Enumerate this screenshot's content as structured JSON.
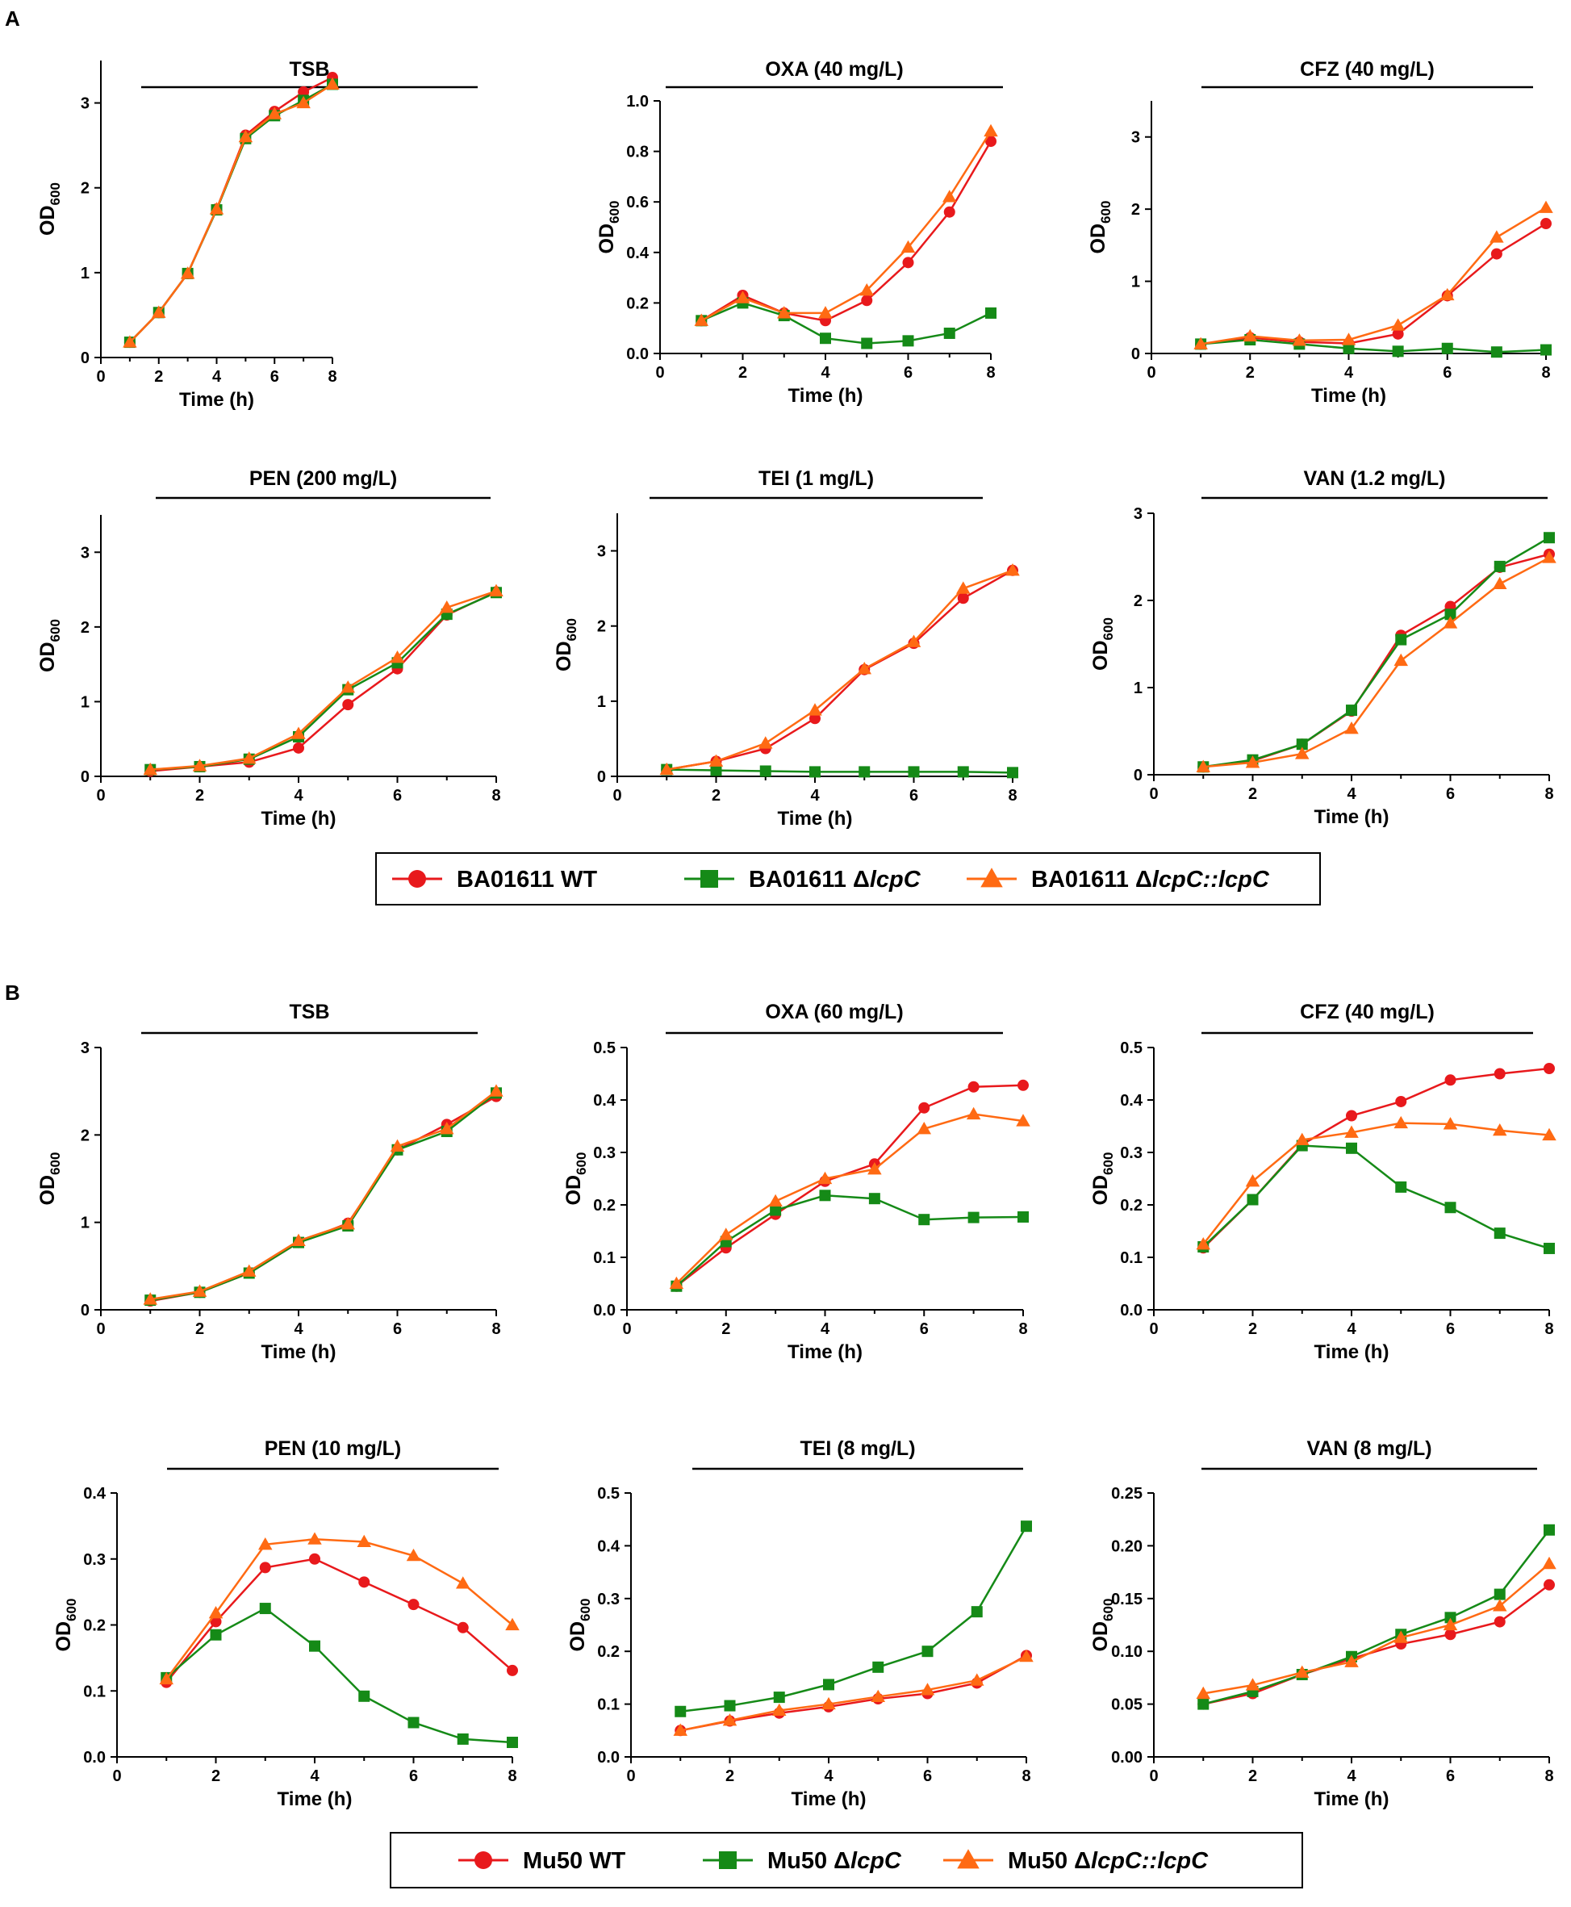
{
  "series_styles": [
    {
      "color": "#e8191c",
      "marker": "circle"
    },
    {
      "color": "#158a17",
      "marker": "square"
    },
    {
      "color": "#ff6a13",
      "marker": "triangle"
    }
  ],
  "axis_labels": {
    "xlabel": "Time (h)",
    "ylabel_main": "OD",
    "ylabel_sub": "600"
  },
  "panels": [
    {
      "letter": "A",
      "legend": [
        {
          "prefix": "BA01611 ",
          "delta": "",
          "italic": "",
          "suffix": "WT"
        },
        {
          "prefix": "BA01611 ",
          "delta": "Δ",
          "italic": "lcpC",
          "suffix": ""
        },
        {
          "prefix": "BA01611 ",
          "delta": "Δ",
          "italic": "lcpC::lcpC",
          "suffix": ""
        }
      ]
    },
    {
      "letter": "B",
      "legend": [
        {
          "prefix": "Mu50 ",
          "delta": "",
          "italic": "",
          "suffix": "WT"
        },
        {
          "prefix": "Mu50 ",
          "delta": "Δ",
          "italic": "lcpC",
          "suffix": ""
        },
        {
          "prefix": "Mu50 ",
          "delta": "Δ",
          "italic": "lcpC::lcpC",
          "suffix": ""
        }
      ]
    }
  ],
  "chart_data": [
    {
      "panel": "A",
      "type": "line",
      "title": "TSB",
      "xlabel": "Time (h)",
      "ylabel": "OD600",
      "xlim": [
        0,
        8
      ],
      "xticks": [
        "0",
        "2",
        "4",
        "6",
        "8"
      ],
      "ylim": [
        0,
        3.5
      ],
      "yticks": [
        "0",
        "1",
        "2",
        "3"
      ],
      "x": [
        1,
        2,
        3,
        4,
        5,
        6,
        7,
        8
      ],
      "series": [
        {
          "name": "BA01611 WT",
          "values": [
            0.18,
            0.53,
            0.99,
            1.75,
            2.62,
            2.9,
            3.13,
            3.3
          ]
        },
        {
          "name": "BA01611 ΔlcpC",
          "values": [
            0.18,
            0.53,
            0.99,
            1.74,
            2.58,
            2.85,
            3.03,
            3.22
          ]
        },
        {
          "name": "BA01611 ΔlcpC::lcpC",
          "values": [
            0.18,
            0.53,
            0.99,
            1.75,
            2.6,
            2.87,
            3.0,
            3.22
          ]
        }
      ]
    },
    {
      "panel": "A",
      "type": "line",
      "title": "OXA (40 mg/L)",
      "xlabel": "Time (h)",
      "ylabel": "OD600",
      "xlim": [
        0,
        8
      ],
      "xticks": [
        "0",
        "2",
        "4",
        "6",
        "8"
      ],
      "ylim": [
        0,
        1.0
      ],
      "yticks": [
        "0.0",
        "0.2",
        "0.4",
        "0.6",
        "0.8",
        "1.0"
      ],
      "x": [
        1,
        2,
        3,
        4,
        5,
        6,
        7,
        8
      ],
      "series": [
        {
          "name": "BA01611 WT",
          "values": [
            0.13,
            0.23,
            0.16,
            0.13,
            0.21,
            0.36,
            0.56,
            0.84
          ]
        },
        {
          "name": "BA01611 ΔlcpC",
          "values": [
            0.13,
            0.2,
            0.15,
            0.06,
            0.04,
            0.05,
            0.08,
            0.16
          ]
        },
        {
          "name": "BA01611 ΔlcpC::lcpC",
          "values": [
            0.13,
            0.22,
            0.16,
            0.16,
            0.25,
            0.42,
            0.62,
            0.88
          ]
        }
      ]
    },
    {
      "panel": "A",
      "type": "line",
      "title": "CFZ (40 mg/L)",
      "xlabel": "Time (h)",
      "ylabel": "OD600",
      "xlim": [
        0,
        8
      ],
      "xticks": [
        "0",
        "2",
        "4",
        "6",
        "8"
      ],
      "ylim": [
        0,
        3.5
      ],
      "yticks": [
        "0",
        "1",
        "2",
        "3"
      ],
      "x": [
        1,
        2,
        3,
        4,
        5,
        6,
        7,
        8
      ],
      "series": [
        {
          "name": "BA01611 WT",
          "values": [
            0.13,
            0.22,
            0.16,
            0.14,
            0.27,
            0.8,
            1.38,
            1.8
          ]
        },
        {
          "name": "BA01611 ΔlcpC",
          "values": [
            0.13,
            0.19,
            0.13,
            0.07,
            0.03,
            0.07,
            0.02,
            0.05
          ]
        },
        {
          "name": "BA01611 ΔlcpC::lcpC",
          "values": [
            0.13,
            0.24,
            0.18,
            0.19,
            0.39,
            0.81,
            1.61,
            2.02
          ]
        }
      ]
    },
    {
      "panel": "A",
      "type": "line",
      "title": "PEN (200 mg/L)",
      "xlabel": "Time (h)",
      "ylabel": "OD600",
      "xlim": [
        0,
        8
      ],
      "xticks": [
        "0",
        "2",
        "4",
        "6",
        "8"
      ],
      "ylim": [
        0,
        3.5
      ],
      "yticks": [
        "0",
        "1",
        "2",
        "3"
      ],
      "x": [
        1,
        2,
        3,
        4,
        5,
        6,
        7,
        8
      ],
      "series": [
        {
          "name": "BA01611 WT",
          "values": [
            0.07,
            0.13,
            0.19,
            0.38,
            0.96,
            1.44,
            2.16,
            2.47
          ]
        },
        {
          "name": "BA01611 ΔlcpC",
          "values": [
            0.09,
            0.13,
            0.23,
            0.53,
            1.16,
            1.52,
            2.17,
            2.46
          ]
        },
        {
          "name": "BA01611 ΔlcpC::lcpC",
          "values": [
            0.09,
            0.14,
            0.24,
            0.57,
            1.19,
            1.59,
            2.26,
            2.48
          ]
        }
      ]
    },
    {
      "panel": "A",
      "type": "line",
      "title": "TEI (1 mg/L)",
      "xlabel": "Time (h)",
      "ylabel": "OD600",
      "xlim": [
        0,
        8
      ],
      "xticks": [
        "0",
        "2",
        "4",
        "6",
        "8"
      ],
      "ylim": [
        0,
        3.5
      ],
      "yticks": [
        "0",
        "1",
        "2",
        "3"
      ],
      "x": [
        1,
        2,
        3,
        4,
        5,
        6,
        7,
        8
      ],
      "series": [
        {
          "name": "BA01611 WT",
          "values": [
            0.09,
            0.2,
            0.37,
            0.77,
            1.42,
            1.77,
            2.37,
            2.74
          ]
        },
        {
          "name": "BA01611 ΔlcpC",
          "values": [
            0.09,
            0.08,
            0.07,
            0.06,
            0.06,
            0.06,
            0.06,
            0.05
          ]
        },
        {
          "name": "BA01611 ΔlcpC::lcpC",
          "values": [
            0.09,
            0.2,
            0.44,
            0.88,
            1.43,
            1.79,
            2.5,
            2.74
          ]
        }
      ]
    },
    {
      "panel": "A",
      "type": "line",
      "title": "VAN (1.2 mg/L)",
      "xlabel": "Time (h)",
      "ylabel": "OD600",
      "xlim": [
        0,
        8
      ],
      "xticks": [
        "0",
        "2",
        "4",
        "6",
        "8"
      ],
      "ylim": [
        0,
        3.0
      ],
      "yticks": [
        "0",
        "1",
        "2",
        "3"
      ],
      "x": [
        1,
        2,
        3,
        4,
        5,
        6,
        7,
        8
      ],
      "series": [
        {
          "name": "BA01611 WT",
          "values": [
            0.09,
            0.16,
            0.35,
            0.73,
            1.6,
            1.93,
            2.38,
            2.53
          ]
        },
        {
          "name": "BA01611 ΔlcpC",
          "values": [
            0.09,
            0.17,
            0.35,
            0.74,
            1.55,
            1.84,
            2.39,
            2.72
          ]
        },
        {
          "name": "BA01611 ΔlcpC::lcpC",
          "values": [
            0.09,
            0.14,
            0.24,
            0.53,
            1.31,
            1.74,
            2.19,
            2.49
          ]
        }
      ]
    },
    {
      "panel": "B",
      "type": "line",
      "title": "TSB",
      "xlabel": "Time (h)",
      "ylabel": "OD600",
      "xlim": [
        0,
        8
      ],
      "xticks": [
        "0",
        "2",
        "4",
        "6",
        "8"
      ],
      "ylim": [
        0,
        3.0
      ],
      "yticks": [
        "0",
        "1",
        "2",
        "3"
      ],
      "x": [
        1,
        2,
        3,
        4,
        5,
        6,
        7,
        8
      ],
      "series": [
        {
          "name": "Mu50 WT",
          "values": [
            0.1,
            0.2,
            0.42,
            0.77,
            0.99,
            1.83,
            2.12,
            2.44
          ]
        },
        {
          "name": "Mu50 ΔlcpC",
          "values": [
            0.11,
            0.2,
            0.42,
            0.77,
            0.96,
            1.83,
            2.04,
            2.48
          ]
        },
        {
          "name": "Mu50 ΔlcpC::lcpC",
          "values": [
            0.12,
            0.21,
            0.44,
            0.79,
            0.98,
            1.87,
            2.07,
            2.5
          ]
        }
      ]
    },
    {
      "panel": "B",
      "type": "line",
      "title": "OXA (60 mg/L)",
      "xlabel": "Time (h)",
      "ylabel": "OD600",
      "xlim": [
        0,
        8
      ],
      "xticks": [
        "0",
        "2",
        "4",
        "6",
        "8"
      ],
      "ylim": [
        0,
        0.5
      ],
      "yticks": [
        "0.0",
        "0.1",
        "0.2",
        "0.3",
        "0.4",
        "0.5"
      ],
      "x": [
        1,
        2,
        3,
        4,
        5,
        6,
        7,
        8
      ],
      "series": [
        {
          "name": "Mu50 WT",
          "values": [
            0.045,
            0.118,
            0.182,
            0.245,
            0.278,
            0.385,
            0.425,
            0.428
          ]
        },
        {
          "name": "Mu50 ΔlcpC",
          "values": [
            0.045,
            0.13,
            0.19,
            0.218,
            0.212,
            0.172,
            0.176,
            0.177
          ]
        },
        {
          "name": "Mu50 ΔlcpC::lcpC",
          "values": [
            0.05,
            0.143,
            0.207,
            0.25,
            0.268,
            0.345,
            0.373,
            0.36
          ]
        }
      ]
    },
    {
      "panel": "B",
      "type": "line",
      "title": "CFZ (40 mg/L)",
      "xlabel": "Time (h)",
      "ylabel": "OD600",
      "xlim": [
        0,
        8
      ],
      "xticks": [
        "0",
        "2",
        "4",
        "6",
        "8"
      ],
      "ylim": [
        0,
        0.5
      ],
      "yticks": [
        "0.0",
        "0.1",
        "0.2",
        "0.3",
        "0.4",
        "0.5"
      ],
      "x": [
        1,
        2,
        3,
        4,
        5,
        6,
        7,
        8
      ],
      "series": [
        {
          "name": "Mu50 WT",
          "values": [
            0.118,
            0.21,
            0.315,
            0.37,
            0.397,
            0.438,
            0.45,
            0.46
          ]
        },
        {
          "name": "Mu50 ΔlcpC",
          "values": [
            0.12,
            0.21,
            0.313,
            0.308,
            0.234,
            0.195,
            0.146,
            0.117
          ]
        },
        {
          "name": "Mu50 ΔlcpC::lcpC",
          "values": [
            0.125,
            0.245,
            0.324,
            0.338,
            0.356,
            0.354,
            0.342,
            0.333
          ]
        }
      ]
    },
    {
      "panel": "B",
      "type": "line",
      "title": "PEN (10 mg/L)",
      "xlabel": "Time (h)",
      "ylabel": "OD600",
      "xlim": [
        0,
        8
      ],
      "xticks": [
        "0",
        "2",
        "4",
        "6",
        "8"
      ],
      "ylim": [
        0,
        0.4
      ],
      "yticks": [
        "0.0",
        "0.1",
        "0.2",
        "0.3",
        "0.4"
      ],
      "x": [
        1,
        2,
        3,
        4,
        5,
        6,
        7,
        8
      ],
      "series": [
        {
          "name": "Mu50 WT",
          "values": [
            0.113,
            0.205,
            0.287,
            0.3,
            0.265,
            0.231,
            0.196,
            0.131
          ]
        },
        {
          "name": "Mu50 ΔlcpC",
          "values": [
            0.12,
            0.185,
            0.225,
            0.168,
            0.092,
            0.052,
            0.027,
            0.022
          ]
        },
        {
          "name": "Mu50 ΔlcpC::lcpC",
          "values": [
            0.118,
            0.218,
            0.322,
            0.33,
            0.326,
            0.305,
            0.263,
            0.2
          ]
        }
      ]
    },
    {
      "panel": "B",
      "type": "line",
      "title": "TEI (8 mg/L)",
      "xlabel": "Time (h)",
      "ylabel": "OD600",
      "xlim": [
        0,
        8
      ],
      "xticks": [
        "0",
        "2",
        "4",
        "6",
        "8"
      ],
      "ylim": [
        0,
        0.5
      ],
      "yticks": [
        "0.0",
        "0.1",
        "0.2",
        "0.3",
        "0.4",
        "0.5"
      ],
      "x": [
        1,
        2,
        3,
        4,
        5,
        6,
        7,
        8
      ],
      "series": [
        {
          "name": "Mu50 WT",
          "values": [
            0.05,
            0.068,
            0.083,
            0.095,
            0.11,
            0.12,
            0.14,
            0.192
          ]
        },
        {
          "name": "Mu50 ΔlcpC",
          "values": [
            0.086,
            0.097,
            0.113,
            0.137,
            0.17,
            0.2,
            0.275,
            0.437
          ]
        },
        {
          "name": "Mu50 ΔlcpC::lcpC",
          "values": [
            0.05,
            0.069,
            0.088,
            0.1,
            0.114,
            0.127,
            0.145,
            0.19
          ]
        }
      ]
    },
    {
      "panel": "B",
      "type": "line",
      "title": "VAN (8 mg/L)",
      "xlabel": "Time (h)",
      "ylabel": "OD600",
      "xlim": [
        0,
        8
      ],
      "xticks": [
        "0",
        "2",
        "4",
        "6",
        "8"
      ],
      "ylim": [
        0,
        0.25
      ],
      "yticks": [
        "0.00",
        "0.05",
        "0.10",
        "0.15",
        "0.20",
        "0.25"
      ],
      "x": [
        1,
        2,
        3,
        4,
        5,
        6,
        7,
        8
      ],
      "series": [
        {
          "name": "Mu50 WT",
          "values": [
            0.05,
            0.06,
            0.078,
            0.093,
            0.107,
            0.116,
            0.128,
            0.163
          ]
        },
        {
          "name": "Mu50 ΔlcpC",
          "values": [
            0.05,
            0.062,
            0.078,
            0.095,
            0.116,
            0.132,
            0.154,
            0.215
          ]
        },
        {
          "name": "Mu50 ΔlcpC::lcpC",
          "values": [
            0.06,
            0.068,
            0.08,
            0.09,
            0.113,
            0.125,
            0.143,
            0.183
          ]
        }
      ]
    }
  ]
}
